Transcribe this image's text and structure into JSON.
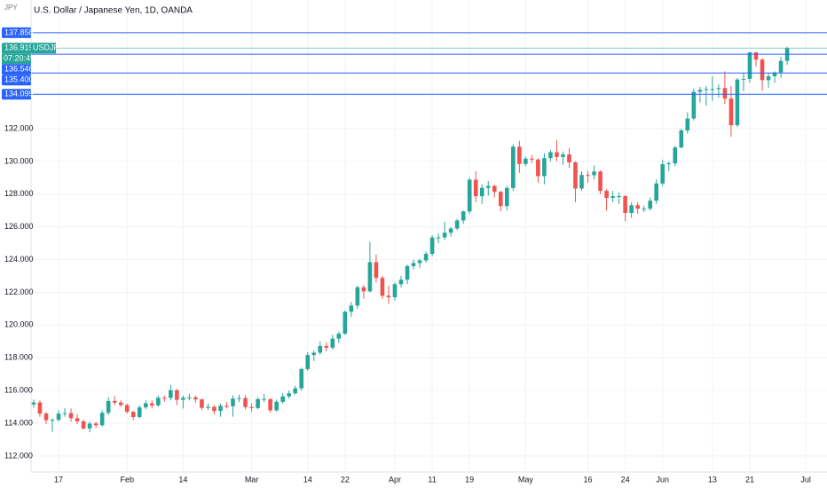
{
  "chart_data": {
    "type": "candlestick",
    "title": "U.S. Dollar / Japanese Yen, 1D, OANDA",
    "currency": "JPY",
    "symbol": "USDJPY",
    "countdown": "07:20:49",
    "up_color": "#26a69a",
    "down_color": "#ef5350",
    "grid": true,
    "ylim": [
      111.02,
      139.86
    ],
    "yticks": [
      {
        "value": 112,
        "label": "112.000"
      },
      {
        "value": 114,
        "label": "114.000"
      },
      {
        "value": 116,
        "label": "116.000"
      },
      {
        "value": 118,
        "label": "118.000"
      },
      {
        "value": 120,
        "label": "120.000"
      },
      {
        "value": 122,
        "label": "122.000"
      },
      {
        "value": 124,
        "label": "124.000"
      },
      {
        "value": 126,
        "label": "126.000"
      },
      {
        "value": 128,
        "label": "128.000"
      },
      {
        "value": 130,
        "label": "130.000"
      },
      {
        "value": 132,
        "label": "132.000"
      }
    ],
    "xlim": [
      -0.42,
      127.4
    ],
    "xticks": [
      {
        "value": 4,
        "label": "17"
      },
      {
        "value": 15,
        "label": "Feb"
      },
      {
        "value": 24,
        "label": "14"
      },
      {
        "value": 35,
        "label": "Mar"
      },
      {
        "value": 44,
        "label": "14"
      },
      {
        "value": 50,
        "label": "22"
      },
      {
        "value": 58,
        "label": "Apr"
      },
      {
        "value": 64,
        "label": "11"
      },
      {
        "value": 70,
        "label": "19"
      },
      {
        "value": 79,
        "label": "May"
      },
      {
        "value": 89,
        "label": "16"
      },
      {
        "value": 95,
        "label": "24"
      },
      {
        "value": 101,
        "label": "Jun"
      },
      {
        "value": 109,
        "label": "13"
      },
      {
        "value": 115,
        "label": "21"
      },
      {
        "value": 124,
        "label": "Jul"
      }
    ],
    "last_price": {
      "value": 136.919,
      "color": "#26a69a"
    },
    "price_lines": [
      {
        "value": 137.858,
        "color": "#2962ff"
      },
      {
        "value": 136.546,
        "color": "#2962ff"
      },
      {
        "value": 135.4,
        "label": "135.400",
        "color": "#2962ff"
      },
      {
        "value": 134.099,
        "color": "#2962ff"
      }
    ],
    "open": [
      115.15,
      115.27,
      114.59,
      114.19,
      114.21,
      114.59,
      114.62,
      114.31,
      114.12,
      113.68,
      113.98,
      113.88,
      114.64,
      115.36,
      115.26,
      115.11,
      114.7,
      114.38,
      114.97,
      115.22,
      115.09,
      115.56,
      115.55,
      116.02,
      115.43,
      115.56,
      115.58,
      115.46,
      114.94,
      115.0,
      114.75,
      115.07,
      115.04,
      115.51,
      115.54,
      114.99,
      114.93,
      115.47,
      115.48,
      114.79,
      115.31,
      115.64,
      115.83,
      116.13,
      117.31,
      118.17,
      118.31,
      118.72,
      118.62,
      119.17,
      119.47,
      120.81,
      121.19,
      122.31,
      122.06,
      123.84,
      122.88,
      121.79,
      121.7,
      122.5,
      122.77,
      123.6,
      123.79,
      123.95,
      124.35,
      125.35,
      125.36,
      125.64,
      125.9,
      126.39,
      126.94,
      128.88,
      127.87,
      128.38,
      128.5,
      128.14,
      127.27,
      128.38,
      130.9,
      129.84,
      130.17,
      130.11,
      129.1,
      130.2,
      130.56,
      130.27,
      130.42,
      129.94,
      128.34,
      129.17,
      129.16,
      129.38,
      128.2,
      127.77,
      127.87,
      127.88,
      126.85,
      127.32,
      127.11,
      127.11,
      127.6,
      128.65,
      129.83,
      129.88,
      130.85,
      131.89,
      132.62,
      134.25,
      134.37,
      134.42,
      134.42,
      134.48,
      133.84,
      132.21,
      135.0,
      135.04,
      136.66,
      136.22,
      134.96,
      135.2,
      135.43,
      136.14
    ],
    "high": [
      115.45,
      115.4,
      114.7,
      114.3,
      114.8,
      114.92,
      114.9,
      114.55,
      114.2,
      114.1,
      114.1,
      114.8,
      115.6,
      115.65,
      115.4,
      115.2,
      114.75,
      115.1,
      115.4,
      115.4,
      115.7,
      115.7,
      116.35,
      116.1,
      115.7,
      115.8,
      115.7,
      115.5,
      115.2,
      115.1,
      115.2,
      115.3,
      115.7,
      115.75,
      115.7,
      115.2,
      115.6,
      115.8,
      115.5,
      115.45,
      115.85,
      116.0,
      116.3,
      117.4,
      118.35,
      118.45,
      119.0,
      118.95,
      119.4,
      119.6,
      120.9,
      121.4,
      122.4,
      122.45,
      125.1,
      124.3,
      123.0,
      122.4,
      122.6,
      123.0,
      123.7,
      124.0,
      124.05,
      124.5,
      125.5,
      125.6,
      126.3,
      126.0,
      126.5,
      127.0,
      129.0,
      129.4,
      128.6,
      128.8,
      128.6,
      128.2,
      128.5,
      131.05,
      131.25,
      130.3,
      130.4,
      130.2,
      130.5,
      130.7,
      131.3,
      130.6,
      130.8,
      130.0,
      129.4,
      129.4,
      129.75,
      129.45,
      128.3,
      128.2,
      128.1,
      127.95,
      127.5,
      127.5,
      127.3,
      127.8,
      128.9,
      130.1,
      130.0,
      130.95,
      132.0,
      132.99,
      134.45,
      134.55,
      134.6,
      135.2,
      134.7,
      135.5,
      134.6,
      135.1,
      135.4,
      136.7,
      136.7,
      136.3,
      135.4,
      135.5,
      136.4,
      137.0
    ],
    "low": [
      114.95,
      114.4,
      113.95,
      113.48,
      114.1,
      114.4,
      114.1,
      113.95,
      113.6,
      113.45,
      113.7,
      113.8,
      114.5,
      115.1,
      115.0,
      114.6,
      114.2,
      114.3,
      114.85,
      114.9,
      115.0,
      115.3,
      115.4,
      115.1,
      114.9,
      115.4,
      115.25,
      114.8,
      114.8,
      114.55,
      114.4,
      114.9,
      114.4,
      115.3,
      114.85,
      114.7,
      114.85,
      115.3,
      114.65,
      114.7,
      115.2,
      115.5,
      115.75,
      116.0,
      117.2,
      117.8,
      118.2,
      118.4,
      118.5,
      118.9,
      119.4,
      120.5,
      121.0,
      121.6,
      122.0,
      122.6,
      121.6,
      121.3,
      121.5,
      122.3,
      122.5,
      123.4,
      123.5,
      123.8,
      124.2,
      125.0,
      125.2,
      125.4,
      125.8,
      126.2,
      126.8,
      127.5,
      127.4,
      127.9,
      127.8,
      126.95,
      127.0,
      128.2,
      129.3,
      129.7,
      129.9,
      128.7,
      128.6,
      130.0,
      130.0,
      129.8,
      129.6,
      127.5,
      128.2,
      128.7,
      128.9,
      128.0,
      127.0,
      127.5,
      127.4,
      126.35,
      126.55,
      126.8,
      126.9,
      127.0,
      127.4,
      128.5,
      129.4,
      129.7,
      130.8,
      131.7,
      132.5,
      133.6,
      133.4,
      133.7,
      133.9,
      133.5,
      131.5,
      132.1,
      134.3,
      134.8,
      135.8,
      134.3,
      134.5,
      134.8,
      135.1,
      135.9
    ],
    "close": [
      115.27,
      114.59,
      114.19,
      114.21,
      114.59,
      114.62,
      114.31,
      114.12,
      113.68,
      113.98,
      113.88,
      114.64,
      115.36,
      115.26,
      115.11,
      114.7,
      114.38,
      114.97,
      115.22,
      115.09,
      115.56,
      115.55,
      116.02,
      115.43,
      115.56,
      115.58,
      115.46,
      114.94,
      115.0,
      114.75,
      115.07,
      115.04,
      115.51,
      115.54,
      114.99,
      114.93,
      115.47,
      115.48,
      114.79,
      115.31,
      115.64,
      115.83,
      116.13,
      117.31,
      118.17,
      118.31,
      118.72,
      118.62,
      119.17,
      119.47,
      120.81,
      121.19,
      122.31,
      122.06,
      123.84,
      122.88,
      121.79,
      121.7,
      122.5,
      122.77,
      123.6,
      123.79,
      123.95,
      124.35,
      125.35,
      125.36,
      125.64,
      125.9,
      126.39,
      126.94,
      128.88,
      127.87,
      128.38,
      128.5,
      128.14,
      127.27,
      128.38,
      130.9,
      129.84,
      130.17,
      130.11,
      129.1,
      130.2,
      130.56,
      130.27,
      130.42,
      129.94,
      128.34,
      129.17,
      129.16,
      129.38,
      128.2,
      127.77,
      127.87,
      127.88,
      126.85,
      127.32,
      127.11,
      127.11,
      127.6,
      128.65,
      129.83,
      129.88,
      130.85,
      131.89,
      132.62,
      134.25,
      134.37,
      134.42,
      134.42,
      134.48,
      133.84,
      132.21,
      135.0,
      135.04,
      136.66,
      136.22,
      134.96,
      135.2,
      135.43,
      136.14,
      136.919
    ]
  }
}
